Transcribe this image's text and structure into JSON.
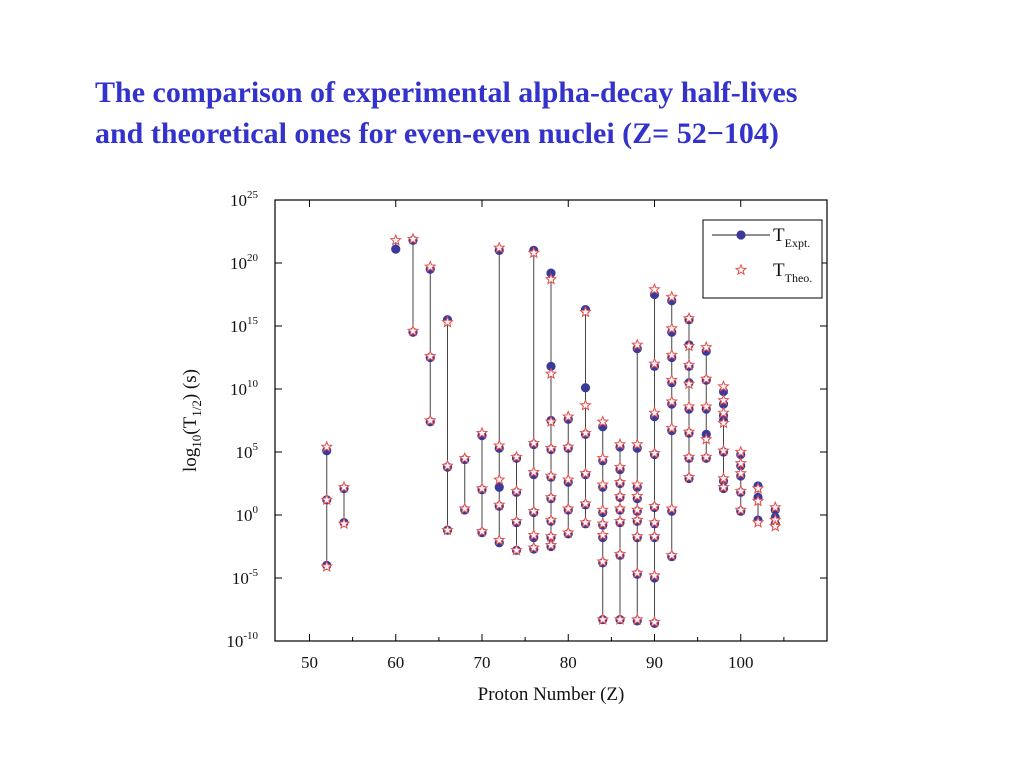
{
  "slide": {
    "title_line1": "The comparison of experimental alpha-decay half-lives",
    "title_line2": "and theoretical ones for even-even nuclei (Z= 52−104)"
  },
  "chart_data": {
    "type": "scatter",
    "xlabel": "Proton Number (Z)",
    "ylabel": "log10(T1/2) (s)",
    "xlim": [
      46,
      110
    ],
    "ylim": [
      -10,
      25
    ],
    "y_scale": "log",
    "x_ticks": [
      50,
      60,
      70,
      80,
      90,
      100
    ],
    "y_ticks": [
      -10,
      -5,
      0,
      5,
      10,
      15,
      20,
      25
    ],
    "x_tick_labels": [
      "50",
      "60",
      "70",
      "80",
      "90",
      "100"
    ],
    "y_tick_base": "10",
    "y_tick_exponents": [
      "-10",
      "-5",
      "0",
      "5",
      "10",
      "15",
      "20",
      "25"
    ],
    "grid": false,
    "legend_position": "top-right",
    "legend": [
      {
        "base": "T",
        "sub": "Expt.",
        "marker": "circle-line"
      },
      {
        "base": "T",
        "sub": "Theo.",
        "marker": "star"
      }
    ],
    "colors": {
      "expt": "#3a3a9a",
      "theo": "#e05050",
      "line": "#444444"
    },
    "series": [
      {
        "name": "TExpt.",
        "marker": "circle",
        "points": [
          [
            52,
            5.1
          ],
          [
            52,
            1.2
          ],
          [
            52,
            -4.0
          ],
          [
            54,
            2.1
          ],
          [
            54,
            -0.6
          ],
          [
            60,
            21.1
          ],
          [
            62,
            21.8
          ],
          [
            62,
            14.5
          ],
          [
            64,
            19.5
          ],
          [
            64,
            12.5
          ],
          [
            64,
            7.4
          ],
          [
            66,
            15.5
          ],
          [
            66,
            3.8
          ],
          [
            66,
            -1.2
          ],
          [
            68,
            4.4
          ],
          [
            68,
            0.4
          ],
          [
            70,
            6.3
          ],
          [
            70,
            2.0
          ],
          [
            70,
            -1.4
          ],
          [
            72,
            21.0
          ],
          [
            72,
            5.3
          ],
          [
            72,
            2.2
          ],
          [
            72,
            0.7
          ],
          [
            72,
            -2.2
          ],
          [
            74,
            4.5
          ],
          [
            74,
            1.8
          ],
          [
            74,
            -0.6
          ],
          [
            74,
            -2.8
          ],
          [
            76,
            21.0
          ],
          [
            76,
            5.6
          ],
          [
            76,
            3.2
          ],
          [
            76,
            0.2
          ],
          [
            76,
            -1.8
          ],
          [
            76,
            -2.7
          ],
          [
            78,
            19.2
          ],
          [
            78,
            11.8
          ],
          [
            78,
            7.5
          ],
          [
            78,
            5.2
          ],
          [
            78,
            3.0
          ],
          [
            78,
            1.3
          ],
          [
            78,
            -0.5
          ],
          [
            78,
            -1.8
          ],
          [
            78,
            -2.5
          ],
          [
            80,
            7.6
          ],
          [
            80,
            5.3
          ],
          [
            80,
            2.6
          ],
          [
            80,
            0.4
          ],
          [
            80,
            -1.5
          ],
          [
            82,
            16.3
          ],
          [
            82,
            10.1
          ],
          [
            82,
            6.4
          ],
          [
            82,
            3.2
          ],
          [
            82,
            0.8
          ],
          [
            82,
            -0.7
          ],
          [
            84,
            7.0
          ],
          [
            84,
            4.3
          ],
          [
            84,
            2.2
          ],
          [
            84,
            0.2
          ],
          [
            84,
            -0.8
          ],
          [
            84,
            -1.8
          ],
          [
            84,
            -3.8
          ],
          [
            84,
            -8.3
          ],
          [
            86,
            5.4
          ],
          [
            86,
            3.6
          ],
          [
            86,
            2.5
          ],
          [
            86,
            1.4
          ],
          [
            86,
            0.4
          ],
          [
            86,
            -0.6
          ],
          [
            86,
            -3.2
          ],
          [
            86,
            -8.3
          ],
          [
            88,
            13.2
          ],
          [
            88,
            5.3
          ],
          [
            88,
            2.2
          ],
          [
            88,
            1.3
          ],
          [
            88,
            0.3
          ],
          [
            88,
            -0.5
          ],
          [
            88,
            -1.8
          ],
          [
            88,
            -4.7
          ],
          [
            88,
            -8.4
          ],
          [
            90,
            17.5
          ],
          [
            90,
            11.8
          ],
          [
            90,
            7.8
          ],
          [
            90,
            4.8
          ],
          [
            90,
            0.6
          ],
          [
            90,
            -0.7
          ],
          [
            90,
            -1.8
          ],
          [
            90,
            -5.0
          ],
          [
            90,
            -8.6
          ],
          [
            92,
            17.0
          ],
          [
            92,
            14.5
          ],
          [
            92,
            12.5
          ],
          [
            92,
            10.5
          ],
          [
            92,
            8.8
          ],
          [
            92,
            6.7
          ],
          [
            92,
            0.3
          ],
          [
            92,
            -3.3
          ],
          [
            94,
            15.5
          ],
          [
            94,
            13.5
          ],
          [
            94,
            11.8
          ],
          [
            94,
            10.5
          ],
          [
            94,
            8.4
          ],
          [
            94,
            6.5
          ],
          [
            94,
            4.5
          ],
          [
            94,
            2.9
          ],
          [
            96,
            13.0
          ],
          [
            96,
            10.7
          ],
          [
            96,
            8.4
          ],
          [
            96,
            6.4
          ],
          [
            96,
            4.5
          ],
          [
            98,
            9.8
          ],
          [
            98,
            8.8
          ],
          [
            98,
            7.9
          ],
          [
            98,
            7.5
          ],
          [
            98,
            5.0
          ],
          [
            98,
            2.7
          ],
          [
            98,
            2.1
          ],
          [
            100,
            4.8
          ],
          [
            100,
            3.9
          ],
          [
            100,
            3.1
          ],
          [
            100,
            1.8
          ],
          [
            100,
            0.3
          ],
          [
            102,
            2.3
          ],
          [
            102,
            1.4
          ],
          [
            102,
            -0.4
          ],
          [
            104,
            0.4
          ],
          [
            104,
            -0.2
          ],
          [
            104,
            -0.7
          ]
        ]
      },
      {
        "name": "TTheo.",
        "marker": "star",
        "points": [
          [
            52,
            5.4
          ],
          [
            52,
            1.2
          ],
          [
            52,
            -4.1
          ],
          [
            54,
            2.2
          ],
          [
            54,
            -0.7
          ],
          [
            60,
            21.8
          ],
          [
            62,
            21.9
          ],
          [
            62,
            14.6
          ],
          [
            64,
            19.7
          ],
          [
            64,
            12.6
          ],
          [
            64,
            7.5
          ],
          [
            66,
            15.3
          ],
          [
            66,
            3.9
          ],
          [
            66,
            -1.2
          ],
          [
            68,
            4.5
          ],
          [
            68,
            0.5
          ],
          [
            70,
            6.5
          ],
          [
            70,
            2.1
          ],
          [
            70,
            -1.3
          ],
          [
            72,
            21.2
          ],
          [
            72,
            5.5
          ],
          [
            72,
            2.8
          ],
          [
            72,
            0.8
          ],
          [
            72,
            -2.0
          ],
          [
            74,
            4.6
          ],
          [
            74,
            1.9
          ],
          [
            74,
            -0.5
          ],
          [
            74,
            -2.8
          ],
          [
            76,
            20.8
          ],
          [
            76,
            5.7
          ],
          [
            76,
            3.4
          ],
          [
            76,
            0.3
          ],
          [
            76,
            -1.6
          ],
          [
            76,
            -2.6
          ],
          [
            78,
            18.7
          ],
          [
            78,
            11.2
          ],
          [
            78,
            7.4
          ],
          [
            78,
            5.3
          ],
          [
            78,
            3.1
          ],
          [
            78,
            1.4
          ],
          [
            78,
            -0.4
          ],
          [
            78,
            -1.7
          ],
          [
            78,
            -2.4
          ],
          [
            80,
            7.8
          ],
          [
            80,
            5.4
          ],
          [
            80,
            2.8
          ],
          [
            80,
            0.5
          ],
          [
            80,
            -1.4
          ],
          [
            82,
            16.1
          ],
          [
            82,
            8.7
          ],
          [
            82,
            6.5
          ],
          [
            82,
            3.3
          ],
          [
            82,
            0.9
          ],
          [
            82,
            -0.6
          ],
          [
            84,
            7.4
          ],
          [
            84,
            4.5
          ],
          [
            84,
            2.4
          ],
          [
            84,
            0.4
          ],
          [
            84,
            -0.7
          ],
          [
            84,
            -1.6
          ],
          [
            84,
            -3.7
          ],
          [
            84,
            -8.3
          ],
          [
            86,
            5.6
          ],
          [
            86,
            3.8
          ],
          [
            86,
            2.6
          ],
          [
            86,
            1.5
          ],
          [
            86,
            0.5
          ],
          [
            86,
            -0.5
          ],
          [
            86,
            -3.1
          ],
          [
            86,
            -8.3
          ],
          [
            88,
            13.5
          ],
          [
            88,
            5.6
          ],
          [
            88,
            2.4
          ],
          [
            88,
            1.5
          ],
          [
            88,
            0.4
          ],
          [
            88,
            -0.4
          ],
          [
            88,
            -1.7
          ],
          [
            88,
            -4.6
          ],
          [
            88,
            -8.3
          ],
          [
            90,
            17.9
          ],
          [
            90,
            12.0
          ],
          [
            90,
            8.1
          ],
          [
            90,
            4.9
          ],
          [
            90,
            0.7
          ],
          [
            90,
            -0.6
          ],
          [
            90,
            -1.7
          ],
          [
            90,
            -4.8
          ],
          [
            90,
            -8.5
          ],
          [
            92,
            17.3
          ],
          [
            92,
            14.8
          ],
          [
            92,
            12.7
          ],
          [
            92,
            10.7
          ],
          [
            92,
            9.0
          ],
          [
            92,
            6.9
          ],
          [
            92,
            0.5
          ],
          [
            92,
            -3.2
          ],
          [
            94,
            15.6
          ],
          [
            94,
            13.4
          ],
          [
            94,
            11.9
          ],
          [
            94,
            10.4
          ],
          [
            94,
            8.6
          ],
          [
            94,
            6.6
          ],
          [
            94,
            4.6
          ],
          [
            94,
            3.0
          ],
          [
            96,
            13.3
          ],
          [
            96,
            10.8
          ],
          [
            96,
            8.6
          ],
          [
            96,
            6.0
          ],
          [
            96,
            4.6
          ],
          [
            98,
            10.2
          ],
          [
            98,
            9.1
          ],
          [
            98,
            8.1
          ],
          [
            98,
            7.3
          ],
          [
            98,
            5.1
          ],
          [
            98,
            2.9
          ],
          [
            98,
            2.2
          ],
          [
            100,
            5.0
          ],
          [
            100,
            4.1
          ],
          [
            100,
            3.3
          ],
          [
            100,
            1.9
          ],
          [
            100,
            0.4
          ],
          [
            102,
            2.1
          ],
          [
            102,
            1.1
          ],
          [
            102,
            -0.6
          ],
          [
            104,
            0.6
          ],
          [
            104,
            -0.4
          ],
          [
            104,
            -0.9
          ]
        ]
      }
    ]
  }
}
